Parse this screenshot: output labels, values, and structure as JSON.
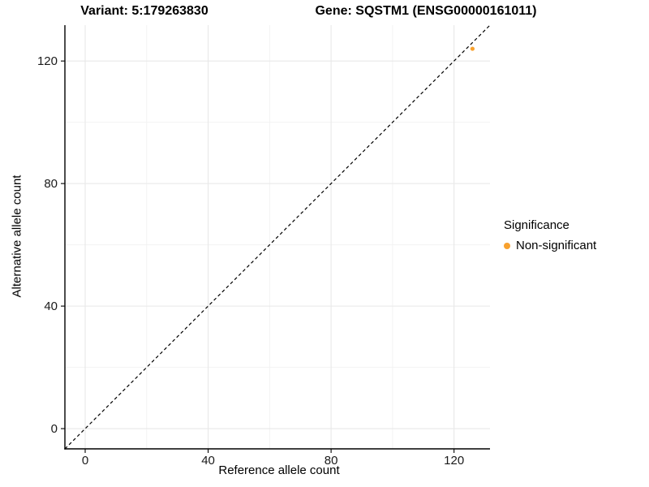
{
  "header": {
    "variant_title": "Variant: 5:179263830",
    "gene_title": "Gene: SQSTM1 (ENSG00000161011)"
  },
  "legend": {
    "title": "Significance",
    "items": [
      {
        "label": "Non-significant",
        "color": "#F8A12E"
      }
    ]
  },
  "chart_data": {
    "type": "scatter",
    "xlabel": "Reference allele count",
    "ylabel": "Alternative allele count",
    "xlim": [
      -6.6,
      131.7
    ],
    "ylim": [
      -6.6,
      131.7
    ],
    "major_ticks": [
      0,
      40,
      80,
      120
    ],
    "minor_ticks": [
      20,
      60,
      100
    ],
    "grid": true,
    "legend_position": "right",
    "identity_line": {
      "slope": 1,
      "intercept": 0,
      "style": "dashed",
      "color": "#000000"
    },
    "series": [
      {
        "name": "Non-significant",
        "color": "#F8A12E",
        "points": [
          {
            "x": 126,
            "y": 124
          }
        ]
      }
    ],
    "colors": {
      "grid_major": "#E8E8E8",
      "grid_minor": "#F2F2F2",
      "axis_line": "#000000",
      "tick_text": "#1a1a1a",
      "background": "#FFFFFF"
    }
  }
}
